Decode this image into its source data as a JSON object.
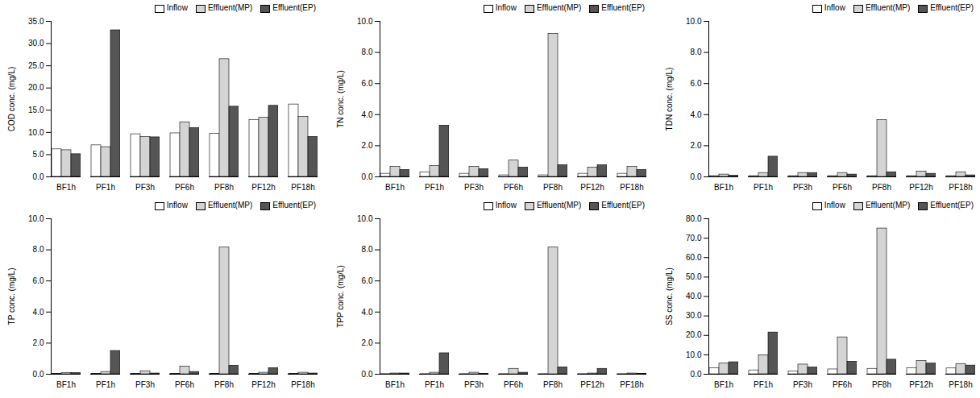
{
  "chart_data": [
    {
      "type": "bar",
      "ylabel": "COD conc. (mg/L)",
      "categories": [
        "BF1h",
        "PF1h",
        "PF3h",
        "PF6h",
        "PF8h",
        "PF12h",
        "PF18h"
      ],
      "series": [
        {
          "name": "Inflow",
          "color": "#ffffff",
          "values": [
            6.2,
            7.1,
            9.6,
            9.8,
            9.7,
            12.8,
            16.3
          ]
        },
        {
          "name": "Effluent(MP)",
          "color": "#d4d4d4",
          "values": [
            6.0,
            6.7,
            9.0,
            12.3,
            26.5,
            13.3,
            13.5
          ]
        },
        {
          "name": "Effluent(EP)",
          "color": "#555555",
          "values": [
            5.1,
            33.0,
            8.9,
            11.0,
            15.8,
            16.0,
            9.0
          ]
        }
      ],
      "ylim": [
        0,
        35
      ],
      "yticks": [
        {
          "value": 0,
          "label": "0.0"
        },
        {
          "value": 5,
          "label": "5.0"
        },
        {
          "value": 10,
          "label": "10.0"
        },
        {
          "value": 15,
          "label": "15.0"
        },
        {
          "value": 20,
          "label": "20.0"
        },
        {
          "value": 25,
          "label": "25.0"
        },
        {
          "value": 30,
          "label": "30.0"
        },
        {
          "value": 35,
          "label": "35.0"
        }
      ],
      "legend": "upper right"
    },
    {
      "type": "bar",
      "ylabel": "TN conc. (mg/L)",
      "categories": [
        "BF1h",
        "PF1h",
        "PF3h",
        "PF6h",
        "PF8h",
        "PF12h",
        "PF18h"
      ],
      "series": [
        {
          "name": "Inflow",
          "color": "#ffffff",
          "values": [
            0.2,
            0.3,
            0.2,
            0.1,
            0.1,
            0.2,
            0.2
          ]
        },
        {
          "name": "Effluent(MP)",
          "color": "#d4d4d4",
          "values": [
            0.65,
            0.7,
            0.65,
            1.05,
            9.2,
            0.6,
            0.65
          ]
        },
        {
          "name": "Effluent(EP)",
          "color": "#555555",
          "values": [
            0.45,
            3.3,
            0.5,
            0.6,
            0.75,
            0.75,
            0.45
          ]
        }
      ],
      "ylim": [
        0,
        10
      ],
      "yticks": [
        {
          "value": 0,
          "label": "0.0"
        },
        {
          "value": 2,
          "label": "2.0"
        },
        {
          "value": 4,
          "label": "4.0"
        },
        {
          "value": 6,
          "label": "6.0"
        },
        {
          "value": 8,
          "label": "8.0"
        },
        {
          "value": 10,
          "label": "10.0"
        }
      ],
      "legend": "upper right"
    },
    {
      "type": "bar",
      "ylabel": "TDN conc. (mg/L)",
      "categories": [
        "BF1h",
        "PF1h",
        "PF3h",
        "PF6h",
        "PF8h",
        "PF12h",
        "PF18h"
      ],
      "series": [
        {
          "name": "Inflow",
          "color": "#ffffff",
          "values": [
            0.05,
            0.05,
            0.05,
            0.05,
            0.05,
            0.05,
            0.05
          ]
        },
        {
          "name": "Effluent(MP)",
          "color": "#d4d4d4",
          "values": [
            0.15,
            0.25,
            0.25,
            0.25,
            3.65,
            0.35,
            0.3
          ]
        },
        {
          "name": "Effluent(EP)",
          "color": "#555555",
          "values": [
            0.08,
            1.3,
            0.25,
            0.15,
            0.3,
            0.2,
            0.1
          ]
        }
      ],
      "ylim": [
        0,
        10
      ],
      "yticks": [
        {
          "value": 0,
          "label": "0.0"
        },
        {
          "value": 2,
          "label": "2.0"
        },
        {
          "value": 4,
          "label": "4.0"
        },
        {
          "value": 6,
          "label": "6.0"
        },
        {
          "value": 8,
          "label": "8.0"
        },
        {
          "value": 10,
          "label": "10.0"
        }
      ],
      "legend": "upper right"
    },
    {
      "type": "bar",
      "ylabel": "TP conc. (mg/L)",
      "categories": [
        "BF1h",
        "PF1h",
        "PF3h",
        "PF6h",
        "PF8h",
        "PF12h",
        "PF18h"
      ],
      "series": [
        {
          "name": "Inflow",
          "color": "#ffffff",
          "values": [
            0.02,
            0.03,
            0.02,
            0.02,
            0.02,
            0.03,
            0.03
          ]
        },
        {
          "name": "Effluent(MP)",
          "color": "#d4d4d4",
          "values": [
            0.08,
            0.15,
            0.2,
            0.5,
            8.15,
            0.1,
            0.1
          ]
        },
        {
          "name": "Effluent(EP)",
          "color": "#555555",
          "values": [
            0.08,
            1.5,
            0.05,
            0.15,
            0.55,
            0.4,
            0.05
          ]
        }
      ],
      "ylim": [
        0,
        10
      ],
      "yticks": [
        {
          "value": 0,
          "label": "0.0"
        },
        {
          "value": 2,
          "label": "2.0"
        },
        {
          "value": 4,
          "label": "4.0"
        },
        {
          "value": 6,
          "label": "6.0"
        },
        {
          "value": 8,
          "label": "8.0"
        },
        {
          "value": 10,
          "label": "10.0"
        }
      ],
      "legend": "upper right"
    },
    {
      "type": "bar",
      "ylabel": "TPP conc. (mg/L)",
      "categories": [
        "BF1h",
        "PF1h",
        "PF3h",
        "PF6h",
        "PF8h",
        "PF12h",
        "PF18h"
      ],
      "series": [
        {
          "name": "Inflow",
          "color": "#ffffff",
          "values": [
            0.01,
            0.01,
            0.01,
            0.01,
            0.01,
            0.01,
            0.01
          ]
        },
        {
          "name": "Effluent(MP)",
          "color": "#d4d4d4",
          "values": [
            0.05,
            0.1,
            0.1,
            0.35,
            8.15,
            0.05,
            0.05
          ]
        },
        {
          "name": "Effluent(EP)",
          "color": "#555555",
          "values": [
            0.05,
            1.35,
            0.02,
            0.1,
            0.45,
            0.35,
            0.03
          ]
        }
      ],
      "ylim": [
        0,
        10
      ],
      "yticks": [
        {
          "value": 0,
          "label": "0.0"
        },
        {
          "value": 2,
          "label": "2.0"
        },
        {
          "value": 4,
          "label": "4.0"
        },
        {
          "value": 6,
          "label": "6.0"
        },
        {
          "value": 8,
          "label": "8.0"
        },
        {
          "value": 10,
          "label": "10.0"
        }
      ],
      "legend": "upper right"
    },
    {
      "type": "bar",
      "ylabel": "SS conc. (mg/L)",
      "categories": [
        "BF1h",
        "PF1h",
        "PF3h",
        "PF6h",
        "PF8h",
        "PF12h",
        "PF18h"
      ],
      "series": [
        {
          "name": "Inflow",
          "color": "#ffffff",
          "values": [
            3.2,
            2.0,
            1.5,
            2.5,
            2.8,
            3.2,
            3.0
          ]
        },
        {
          "name": "Effluent(MP)",
          "color": "#d4d4d4",
          "values": [
            5.5,
            9.8,
            5.0,
            19.0,
            75.0,
            6.8,
            5.3
          ]
        },
        {
          "name": "Effluent(EP)",
          "color": "#555555",
          "values": [
            6.2,
            21.5,
            3.5,
            6.5,
            7.5,
            5.5,
            4.5
          ]
        }
      ],
      "ylim": [
        0,
        80
      ],
      "yticks": [
        {
          "value": 0,
          "label": "0.0"
        },
        {
          "value": 10,
          "label": "10.0"
        },
        {
          "value": 20,
          "label": "20.0"
        },
        {
          "value": 30,
          "label": "30.0"
        },
        {
          "value": 40,
          "label": "40.0"
        },
        {
          "value": 50,
          "label": "50.0"
        },
        {
          "value": 60,
          "label": "60.0"
        },
        {
          "value": 70,
          "label": "70.0"
        },
        {
          "value": 80,
          "label": "80.0"
        }
      ],
      "legend": "upper right"
    }
  ]
}
